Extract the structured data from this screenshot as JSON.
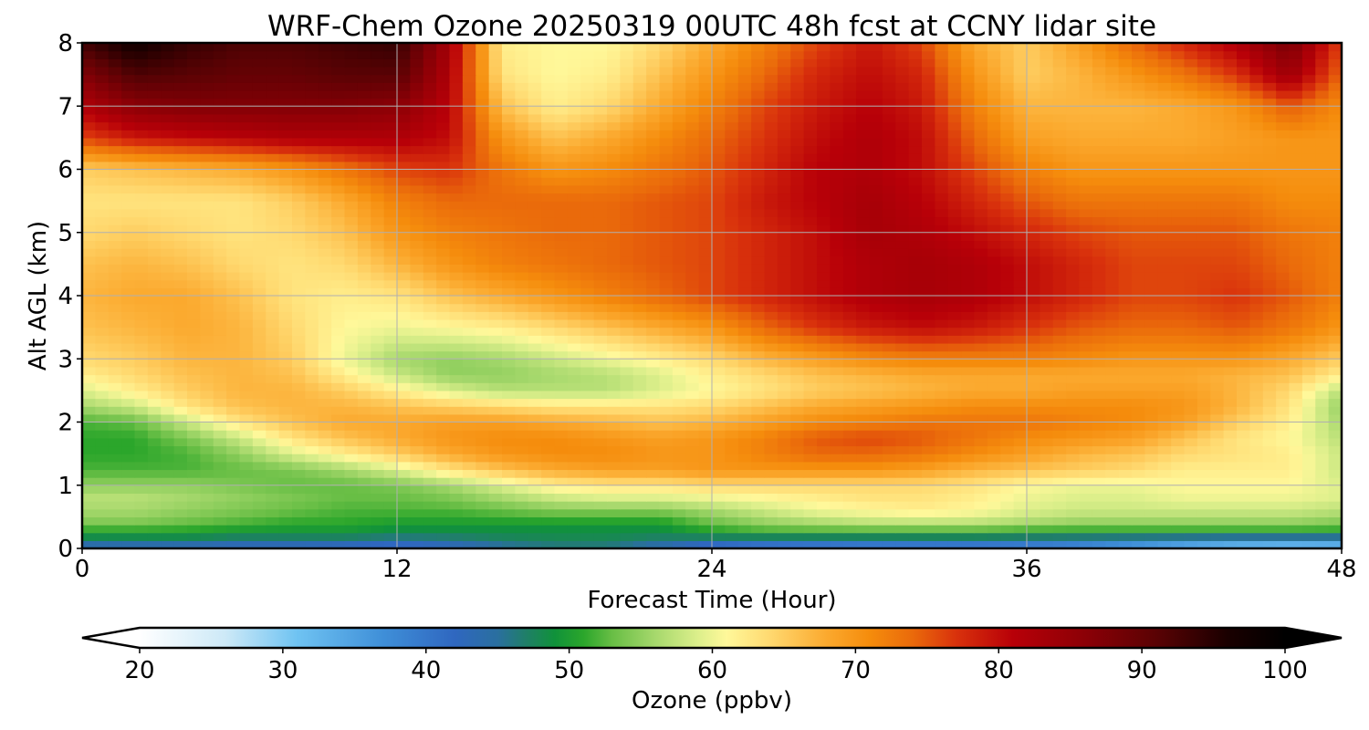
{
  "chart_data": {
    "type": "heatmap",
    "title": "WRF-Chem Ozone  20250319 00UTC 48h fcst at CCNY lidar site",
    "xlabel": "Forecast Time (Hour)",
    "ylabel": "Alt AGL (km)",
    "xlim": [
      0,
      48
    ],
    "ylim": [
      0,
      8
    ],
    "xticks": [
      0,
      12,
      24,
      36,
      48
    ],
    "yticks": [
      0,
      1,
      2,
      3,
      4,
      5,
      6,
      7,
      8
    ],
    "xtick_labels": [
      "0",
      "12",
      "24",
      "36",
      "48"
    ],
    "ytick_labels": [
      "0",
      "1",
      "2",
      "3",
      "4",
      "5",
      "6",
      "7",
      "8"
    ],
    "grid": true,
    "x": [
      0,
      2,
      4,
      6,
      8,
      10,
      12,
      14,
      16,
      18,
      20,
      22,
      24,
      26,
      28,
      30,
      32,
      34,
      36,
      38,
      40,
      42,
      44,
      46,
      48
    ],
    "y": [
      0,
      0.1,
      0.25,
      0.4,
      0.6,
      0.8,
      1.0,
      1.25,
      1.5,
      1.75,
      2.0,
      2.25,
      2.5,
      2.75,
      3.0,
      3.5,
      4.0,
      4.5,
      5.0,
      5.5,
      6.0,
      6.5,
      7.0,
      7.5,
      8.0
    ],
    "ozone_ppbv": [
      [
        41,
        41,
        41,
        40,
        40,
        39,
        38,
        40,
        43,
        44,
        44,
        42,
        38,
        37,
        36,
        35,
        35,
        35,
        34,
        33,
        30,
        27,
        25,
        24,
        25
      ],
      [
        46,
        46,
        46,
        45,
        45,
        45,
        44,
        45,
        47,
        48,
        48,
        46,
        44,
        43,
        43,
        43,
        43,
        43,
        43,
        42,
        41,
        40,
        39,
        39,
        39
      ],
      [
        50,
        50,
        50,
        49,
        49,
        49,
        48,
        48,
        48,
        48,
        48,
        48,
        50,
        51,
        51,
        51,
        51,
        51,
        50,
        50,
        50,
        50,
        50,
        50,
        50
      ],
      [
        54,
        54,
        53,
        52,
        51,
        51,
        50,
        50,
        50,
        50,
        50,
        50,
        53,
        55,
        56,
        57,
        57,
        57,
        56,
        55,
        55,
        55,
        55,
        55,
        54
      ],
      [
        56,
        56,
        55,
        54,
        53,
        52,
        52,
        52,
        53,
        54,
        54,
        54,
        56,
        58,
        60,
        61,
        62,
        61,
        59,
        58,
        58,
        58,
        58,
        58,
        57
      ],
      [
        57,
        57,
        56,
        55,
        54,
        53,
        53,
        54,
        56,
        58,
        59,
        59,
        60,
        61,
        62,
        63,
        63,
        62,
        60,
        59,
        59,
        60,
        60,
        60,
        59
      ],
      [
        55,
        55,
        55,
        54,
        53,
        53,
        54,
        56,
        59,
        62,
        63,
        63,
        64,
        64,
        64,
        64,
        64,
        63,
        61,
        60,
        60,
        61,
        61,
        61,
        59
      ],
      [
        52,
        52,
        52,
        53,
        54,
        56,
        59,
        63,
        66,
        68,
        69,
        69,
        70,
        70,
        70,
        70,
        69,
        67,
        66,
        65,
        64,
        62,
        62,
        62,
        58
      ],
      [
        51,
        51,
        52,
        55,
        59,
        62,
        65,
        68,
        70,
        71,
        71,
        70,
        70,
        72,
        74,
        74,
        73,
        71,
        69,
        67,
        66,
        64,
        63,
        62,
        58
      ],
      [
        51,
        51,
        54,
        58,
        63,
        66,
        68,
        70,
        71,
        71,
        70,
        69,
        70,
        72,
        75,
        76,
        75,
        73,
        71,
        70,
        69,
        66,
        63,
        61,
        57
      ],
      [
        52,
        53,
        58,
        63,
        66,
        68,
        68,
        69,
        69,
        68,
        67,
        66,
        67,
        69,
        71,
        72,
        73,
        73,
        73,
        72,
        71,
        69,
        65,
        62,
        56
      ],
      [
        56,
        58,
        63,
        66,
        67,
        67,
        66,
        65,
        64,
        63,
        63,
        63,
        64,
        66,
        68,
        69,
        70,
        71,
        71,
        71,
        71,
        70,
        67,
        63,
        55
      ],
      [
        59,
        62,
        65,
        67,
        67,
        65,
        62,
        59,
        57,
        57,
        57,
        59,
        61,
        63,
        65,
        66,
        67,
        68,
        68,
        69,
        69,
        69,
        67,
        64,
        57
      ],
      [
        62,
        64,
        66,
        67,
        66,
        62,
        58,
        55,
        55,
        56,
        57,
        59,
        62,
        64,
        66,
        67,
        68,
        68,
        68,
        68,
        68,
        68,
        67,
        66,
        62
      ],
      [
        64,
        65,
        67,
        67,
        65,
        60,
        56,
        55,
        56,
        58,
        60,
        62,
        64,
        67,
        69,
        71,
        72,
        72,
        72,
        71,
        70,
        70,
        70,
        68,
        65
      ],
      [
        66,
        67,
        68,
        67,
        64,
        61,
        60,
        61,
        62,
        64,
        66,
        68,
        70,
        74,
        77,
        79,
        80,
        79,
        77,
        75,
        74,
        74,
        75,
        73,
        70
      ],
      [
        67,
        68,
        68,
        66,
        63,
        62,
        63,
        66,
        68,
        70,
        72,
        74,
        76,
        78,
        80,
        82,
        83,
        82,
        80,
        78,
        76,
        76,
        77,
        75,
        72
      ],
      [
        66,
        67,
        66,
        64,
        63,
        64,
        67,
        70,
        72,
        73,
        74,
        75,
        76,
        78,
        80,
        82,
        83,
        82,
        80,
        78,
        76,
        76,
        76,
        74,
        72
      ],
      [
        64,
        65,
        64,
        63,
        64,
        66,
        70,
        72,
        73,
        74,
        74,
        75,
        76,
        78,
        80,
        83,
        82,
        80,
        78,
        76,
        75,
        75,
        75,
        73,
        72
      ],
      [
        63,
        63,
        63,
        63,
        65,
        68,
        72,
        74,
        74,
        74,
        74,
        75,
        76,
        79,
        81,
        83,
        81,
        78,
        75,
        73,
        73,
        73,
        73,
        71,
        71
      ],
      [
        65,
        66,
        67,
        68,
        70,
        73,
        76,
        77,
        73,
        70,
        71,
        73,
        75,
        78,
        81,
        82,
        80,
        76,
        72,
        70,
        70,
        70,
        70,
        70,
        70
      ],
      [
        76,
        79,
        80,
        81,
        82,
        82,
        82,
        80,
        70,
        66,
        68,
        71,
        74,
        77,
        80,
        82,
        80,
        74,
        69,
        68,
        68,
        68,
        69,
        70,
        70
      ],
      [
        82,
        86,
        87,
        87,
        87,
        87,
        86,
        81,
        66,
        62,
        64,
        68,
        72,
        76,
        79,
        81,
        79,
        72,
        67,
        67,
        67,
        68,
        70,
        75,
        71
      ],
      [
        87,
        92,
        91,
        90,
        90,
        91,
        91,
        82,
        63,
        61,
        62,
        66,
        70,
        74,
        78,
        80,
        78,
        70,
        65,
        67,
        70,
        73,
        77,
        84,
        74
      ],
      [
        93,
        97,
        94,
        92,
        92,
        93,
        94,
        83,
        62,
        61,
        61,
        64,
        68,
        72,
        76,
        79,
        76,
        68,
        65,
        69,
        74,
        78,
        82,
        88,
        76
      ]
    ],
    "colorbar": {
      "label": "Ozone  (ppbv)",
      "min": 20,
      "max": 100,
      "ticks": [
        20,
        30,
        40,
        50,
        60,
        70,
        80,
        90,
        100
      ],
      "tick_labels": [
        "20",
        "30",
        "40",
        "50",
        "60",
        "70",
        "80",
        "90",
        "100"
      ],
      "extend": "both",
      "color_stops": [
        [
          20,
          "#ffffff"
        ],
        [
          26,
          "#cde9f7"
        ],
        [
          31,
          "#6fc3f2"
        ],
        [
          37,
          "#3f8fd8"
        ],
        [
          42,
          "#2f67c0"
        ],
        [
          45,
          "#2a6f9f"
        ],
        [
          47,
          "#1f7f67"
        ],
        [
          49,
          "#10923a"
        ],
        [
          51,
          "#2ba62b"
        ],
        [
          53,
          "#68be45"
        ],
        [
          56,
          "#a6d86c"
        ],
        [
          59,
          "#dcef8b"
        ],
        [
          61,
          "#fff89a"
        ],
        [
          64,
          "#ffd970"
        ],
        [
          68,
          "#fba92e"
        ],
        [
          71,
          "#f58c0c"
        ],
        [
          74,
          "#ea6a0b"
        ],
        [
          77,
          "#d9320c"
        ],
        [
          81,
          "#b80008"
        ],
        [
          86,
          "#8c0006"
        ],
        [
          91,
          "#5a0204"
        ],
        [
          96,
          "#1a0000"
        ],
        [
          100,
          "#000000"
        ]
      ]
    }
  }
}
